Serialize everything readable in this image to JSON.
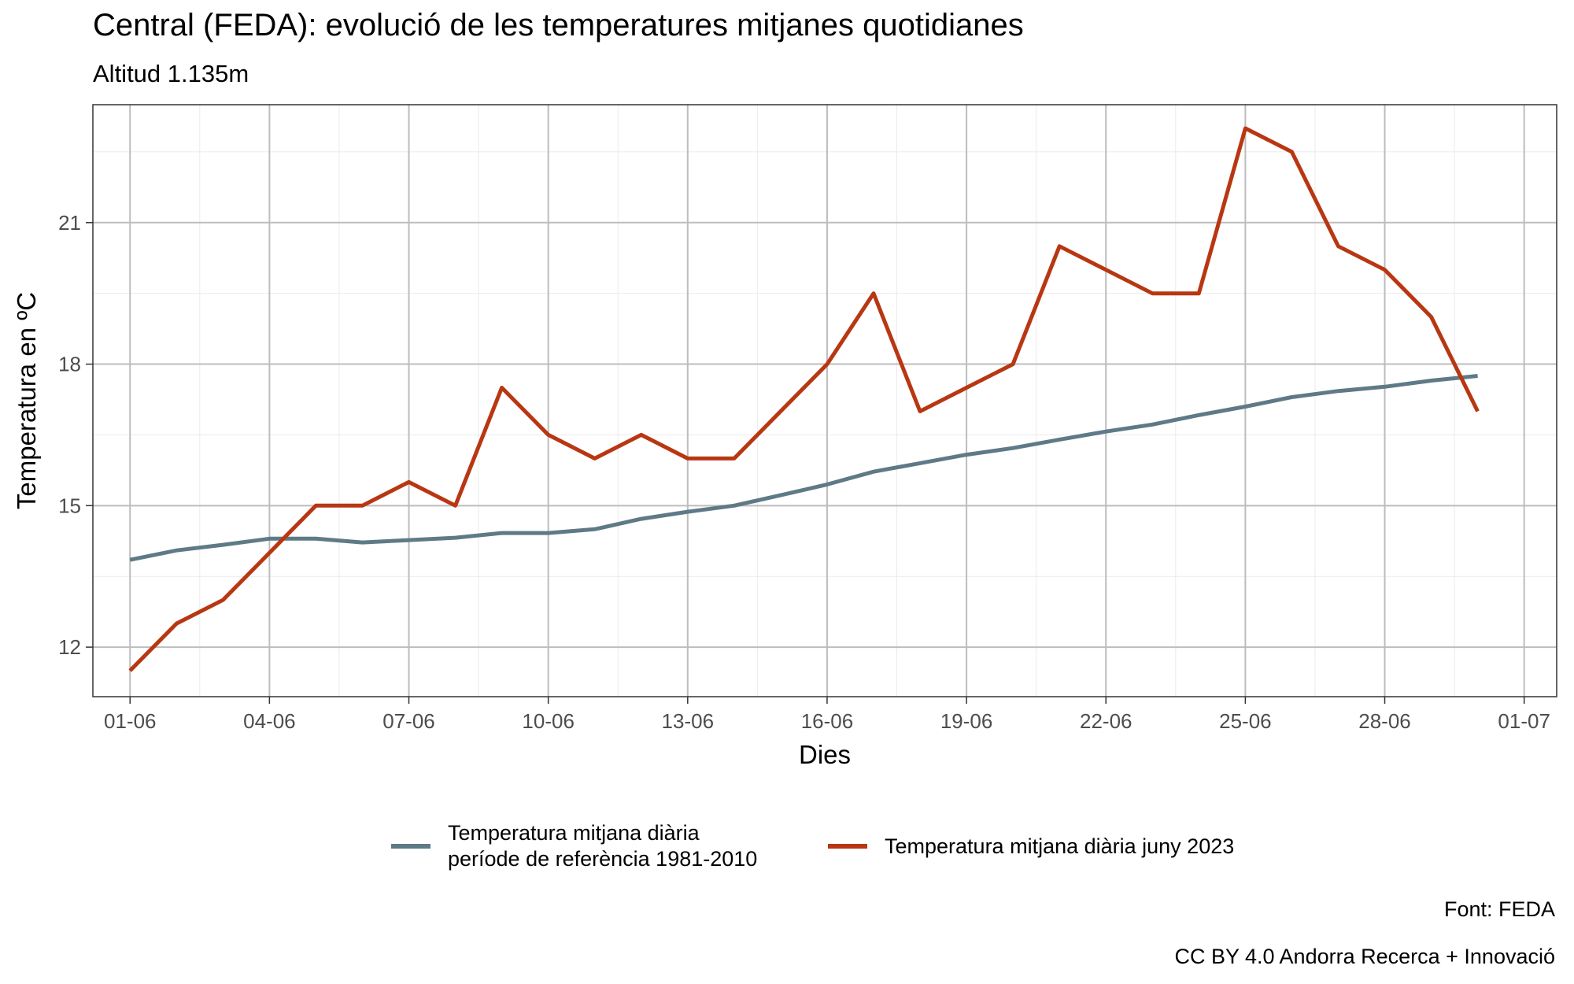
{
  "chart_data": {
    "type": "line",
    "title": "Central (FEDA): evolució de les temperatures mitjanes quotidianes",
    "subtitle": "Altitud 1.135m",
    "xlabel": "Dies",
    "ylabel": "Temperatura en ºC",
    "x_tick_labels": [
      "01-06",
      "04-06",
      "07-06",
      "10-06",
      "13-06",
      "16-06",
      "19-06",
      "22-06",
      "25-06",
      "28-06",
      "01-07"
    ],
    "x_tick_days": [
      1,
      4,
      7,
      10,
      13,
      16,
      19,
      22,
      25,
      28,
      31
    ],
    "xlim": [
      0.2,
      31.7
    ],
    "y_ticks": [
      12,
      15,
      18,
      21
    ],
    "ylim": [
      10.95,
      23.5
    ],
    "grid": true,
    "legend_position": "bottom",
    "series": [
      {
        "name": "Temperatura mitjana diària\n període de referència 1981-2010",
        "color": "#5f7a87",
        "x": [
          1,
          2,
          3,
          4,
          5,
          6,
          7,
          8,
          9,
          10,
          11,
          12,
          13,
          14,
          15,
          16,
          17,
          18,
          19,
          20,
          21,
          22,
          23,
          24,
          25,
          26,
          27,
          28,
          29,
          30
        ],
        "values": [
          13.85,
          14.05,
          14.17,
          14.3,
          14.3,
          14.22,
          14.27,
          14.32,
          14.42,
          14.42,
          14.5,
          14.72,
          14.87,
          15.0,
          15.22,
          15.45,
          15.72,
          15.9,
          16.08,
          16.22,
          16.4,
          16.57,
          16.72,
          16.92,
          17.1,
          17.3,
          17.43,
          17.52,
          17.65,
          17.75
        ]
      },
      {
        "name": "Temperatura mitjana diària juny 2023",
        "color": "#b83712",
        "x": [
          1,
          2,
          3,
          4,
          5,
          6,
          7,
          8,
          9,
          10,
          11,
          12,
          13,
          14,
          15,
          16,
          17,
          18,
          19,
          20,
          21,
          22,
          23,
          24,
          25,
          26,
          27,
          28,
          29,
          30
        ],
        "values": [
          11.5,
          12.5,
          13.0,
          14.0,
          15.0,
          15.0,
          15.5,
          15.0,
          17.5,
          16.5,
          16.0,
          16.5,
          16.0,
          16.0,
          17.0,
          18.0,
          19.5,
          17.0,
          17.5,
          18.0,
          20.5,
          20.0,
          19.5,
          19.5,
          23.0,
          22.5,
          20.5,
          20.0,
          19.0,
          17.0
        ]
      }
    ]
  },
  "captions": {
    "source": "Font: FEDA",
    "license": "CC BY 4.0 Andorra Recerca + Innovació"
  }
}
